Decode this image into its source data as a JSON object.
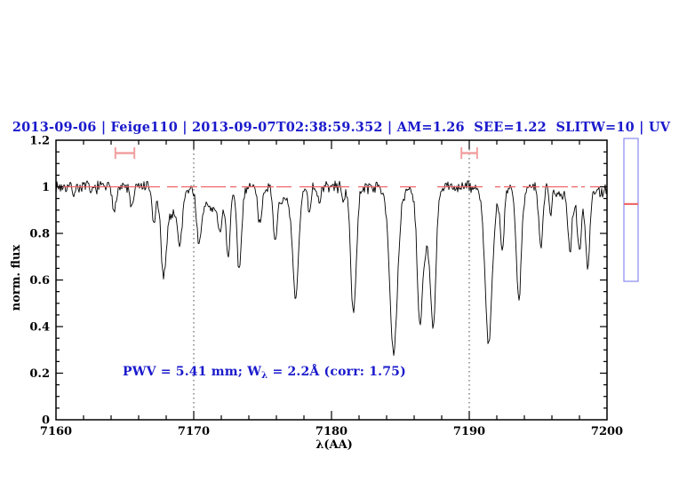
{
  "title": "2013-09-06 | Feige110 | 2013-09-07T02:38:59.352 | AM=1.26  SEE=1.22  SLITW=10 | UV",
  "annotation": {
    "prefix": "PWV = 5.41 mm; W",
    "subscript": "λ",
    "suffix": " = 2.2Å (corr: 1.75)"
  },
  "chart_data": {
    "type": "line",
    "title": "2013-09-06 | Feige110 | 2013-09-07T02:38:59.352 | AM=1.26  SEE=1.22  SLITW=10 | UV",
    "xlabel": "λ(AA)",
    "ylabel": "norm. flux",
    "xlim": [
      7160,
      7200
    ],
    "ylim": [
      0,
      1.2
    ],
    "x_ticks": [
      7160,
      7170,
      7180,
      7190,
      7200
    ],
    "x_tick_labels": [
      "7160",
      "7170",
      "7180",
      "7190",
      "7200"
    ],
    "x_minor_step": 2,
    "y_ticks": [
      0,
      0.2,
      0.4,
      0.6,
      0.8,
      1,
      1.2
    ],
    "y_tick_labels": [
      "0",
      "0.2",
      "0.4",
      "0.6",
      "0.8",
      "1",
      "1.2"
    ],
    "y_minor_step": 0.05,
    "grid": false,
    "legend": "none",
    "continuum_level": 1.0,
    "dotted_lines_x": [
      7170,
      7190
    ],
    "noise_sigma": 0.013,
    "absorption_lines": [
      {
        "center": 7161.3,
        "depth": 0.025,
        "sigma": 0.1
      },
      {
        "center": 7162.6,
        "depth": 0.03,
        "sigma": 0.1
      },
      {
        "center": 7164.2,
        "depth": 0.1,
        "sigma": 0.13
      },
      {
        "center": 7165.5,
        "depth": 0.09,
        "sigma": 0.13
      },
      {
        "center": 7167.1,
        "depth": 0.15,
        "sigma": 0.13
      },
      {
        "center": 7167.8,
        "depth": 0.32,
        "sigma": 0.18
      },
      {
        "center": 7168.3,
        "depth": 0.12,
        "sigma": 0.55
      },
      {
        "center": 7169.0,
        "depth": 0.2,
        "sigma": 0.16
      },
      {
        "center": 7170.4,
        "depth": 0.22,
        "sigma": 0.18
      },
      {
        "center": 7171.5,
        "depth": 0.1,
        "sigma": 0.7
      },
      {
        "center": 7171.9,
        "depth": 0.12,
        "sigma": 0.12
      },
      {
        "center": 7172.5,
        "depth": 0.26,
        "sigma": 0.15
      },
      {
        "center": 7173.3,
        "depth": 0.35,
        "sigma": 0.17
      },
      {
        "center": 7174.8,
        "depth": 0.17,
        "sigma": 0.13
      },
      {
        "center": 7175.9,
        "depth": 0.21,
        "sigma": 0.15
      },
      {
        "center": 7176.8,
        "depth": 0.07,
        "sigma": 0.6
      },
      {
        "center": 7177.4,
        "depth": 0.44,
        "sigma": 0.21
      },
      {
        "center": 7178.4,
        "depth": 0.11,
        "sigma": 0.1
      },
      {
        "center": 7179.1,
        "depth": 0.08,
        "sigma": 0.09
      },
      {
        "center": 7180.9,
        "depth": 0.05,
        "sigma": 0.12
      },
      {
        "center": 7181.6,
        "depth": 0.53,
        "sigma": 0.21
      },
      {
        "center": 7184.5,
        "depth": 0.6,
        "sigma": 0.26
      },
      {
        "center": 7184.6,
        "depth": 0.13,
        "sigma": 0.4
      },
      {
        "center": 7186.4,
        "depth": 0.46,
        "sigma": 0.18
      },
      {
        "center": 7186.9,
        "depth": 0.25,
        "sigma": 0.45
      },
      {
        "center": 7187.4,
        "depth": 0.48,
        "sigma": 0.18
      },
      {
        "center": 7191.4,
        "depth": 0.58,
        "sigma": 0.24
      },
      {
        "center": 7191.6,
        "depth": 0.1,
        "sigma": 0.5
      },
      {
        "center": 7192.4,
        "depth": 0.26,
        "sigma": 0.13
      },
      {
        "center": 7193.6,
        "depth": 0.47,
        "sigma": 0.19
      },
      {
        "center": 7195.2,
        "depth": 0.26,
        "sigma": 0.15
      },
      {
        "center": 7195.9,
        "depth": 0.11,
        "sigma": 0.1
      },
      {
        "center": 7197.3,
        "depth": 0.21,
        "sigma": 0.13
      },
      {
        "center": 7197.7,
        "depth": 0.07,
        "sigma": 0.8
      },
      {
        "center": 7198.0,
        "depth": 0.21,
        "sigma": 0.13
      },
      {
        "center": 7198.6,
        "depth": 0.31,
        "sigma": 0.15
      },
      {
        "center": 7199.6,
        "depth": 0.03,
        "sigma": 0.12
      }
    ],
    "band_markers": [
      {
        "x_center": 7165.0,
        "half_width_A": 0.69,
        "y_flux": 1.145
      },
      {
        "x_center": 7190.0,
        "half_width_A": 0.57,
        "y_flux": 1.145
      }
    ],
    "side_gauge": {
      "red_line_fraction": 0.459
    },
    "colors": {
      "spectrum": "#000000",
      "continuum": "#ef6363",
      "marker": "#f2a0a0",
      "dotted": "#444444",
      "gauge_border": "#8888f0",
      "gauge_line": "#ee6a6a",
      "title": "#1a1acc",
      "annotation": "#1a1acc"
    }
  }
}
